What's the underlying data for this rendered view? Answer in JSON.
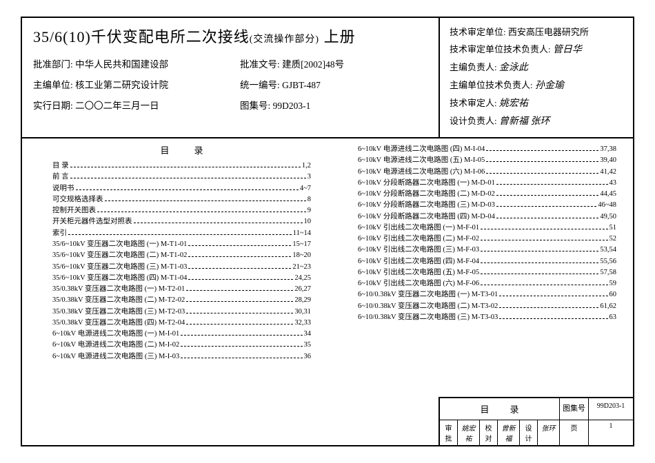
{
  "title_main": "35/6(10)千伏变配电所二次接线",
  "title_paren": "(交流操作部分)",
  "title_suffix": " 上册",
  "header_left": [
    {
      "label": "批准部门:",
      "value": "中华人民共和国建设部"
    },
    {
      "label": "批准文号:",
      "value": "建质[2002]48号"
    },
    {
      "label": "主编单位:",
      "value": "核工业第二研究设计院"
    },
    {
      "label": "统一编号:",
      "value": "GJBT-487"
    },
    {
      "label": "实行日期:",
      "value": "二〇〇二年三月一日"
    },
    {
      "label": "图集号:",
      "value": "99D203-1"
    }
  ],
  "header_right": [
    {
      "label": "技术审定单位:",
      "value": "西安高压电器研究所"
    },
    {
      "label": "技术审定单位技术负责人:",
      "value": "管日华"
    },
    {
      "label": "主编负责人:",
      "value": "金泳此"
    },
    {
      "label": "主编单位技术负责人:",
      "value": "孙金瑜"
    },
    {
      "label": "技术审定人:",
      "value": "姚宏祐"
    },
    {
      "label": "设计负责人:",
      "value": "曾新福  张环"
    }
  ],
  "toc_heading": "目录",
  "toc_left": [
    {
      "name": "目 录",
      "page": "1,2"
    },
    {
      "name": "前 言",
      "page": "3"
    },
    {
      "name": "说明书",
      "page": "4~7"
    },
    {
      "name": "可交规格选择表",
      "page": "8"
    },
    {
      "name": "控制开关图表",
      "page": "9"
    },
    {
      "name": "开关柜元器件选型对照表",
      "page": "10"
    },
    {
      "name": "索引",
      "page": "11~14"
    },
    {
      "name": "35/6~10kV 变压器二次电路图 (一) M-T1-01",
      "page": "15~17"
    },
    {
      "name": "35/6~10kV 变压器二次电路图 (二) M-T1-02",
      "page": "18~20"
    },
    {
      "name": "35/6~10kV 变压器二次电路图 (三) M-T1-03",
      "page": "21~23"
    },
    {
      "name": "35/6~10kV 变压器二次电路图 (四) M-T1-04",
      "page": "24,25"
    },
    {
      "name": "35/0.38kV 变压器二次电路图 (一) M-T2-01",
      "page": "26,27"
    },
    {
      "name": "35/0.38kV 变压器二次电路图 (二) M-T2-02",
      "page": "28,29"
    },
    {
      "name": "35/0.38kV 变压器二次电路图 (三) M-T2-03",
      "page": "30,31"
    },
    {
      "name": "35/0.38kV 变压器二次电路图 (四) M-T2-04",
      "page": "32,33"
    },
    {
      "name": "6~10kV 电源进线二次电路图 (一) M-I-01",
      "page": "34"
    },
    {
      "name": "6~10kV 电源进线二次电路图 (二) M-I-02",
      "page": "35"
    },
    {
      "name": "6~10kV 电源进线二次电路图 (三) M-I-03",
      "page": "36"
    }
  ],
  "toc_right": [
    {
      "name": "6~10kV 电源进线二次电路图 (四) M-I-04",
      "page": "37,38"
    },
    {
      "name": "6~10kV 电源进线二次电路图 (五) M-I-05",
      "page": "39,40"
    },
    {
      "name": "6~10kV 电源进线二次电路图 (六) M-I-06",
      "page": "41,42"
    },
    {
      "name": "6~10kV 分段断路器二次电路图 (一) M-D-01",
      "page": "43"
    },
    {
      "name": "6~10kV 分段断路器二次电路图 (二) M-D-02",
      "page": "44,45"
    },
    {
      "name": "6~10kV 分段断路器二次电路图 (三) M-D-03",
      "page": "46~48"
    },
    {
      "name": "6~10kV 分段断路器二次电路图 (四) M-D-04",
      "page": "49,50"
    },
    {
      "name": "6~10kV 引出线二次电路图 (一) M-F-01",
      "page": "51"
    },
    {
      "name": "6~10kV 引出线二次电路图 (二) M-F-02",
      "page": "52"
    },
    {
      "name": "6~10kV 引出线二次电路图 (三) M-F-03",
      "page": "53,54"
    },
    {
      "name": "6~10kV 引出线二次电路图 (四) M-F-04",
      "page": "55,56"
    },
    {
      "name": "6~10kV 引出线二次电路图 (五) M-F-05",
      "page": "57,58"
    },
    {
      "name": "6~10kV 引出线二次电路图 (六) M-F-06",
      "page": "59"
    },
    {
      "name": "6~10/0.38kV 变压器二次电路图 (一) M-T3-01",
      "page": "60"
    },
    {
      "name": "6~10/0.38kV 变压器二次电路图 (二) M-T3-02",
      "page": "61,62"
    },
    {
      "name": "6~10/0.38kV 变压器二次电路图 (三) M-T3-03",
      "page": "63"
    }
  ],
  "footer": {
    "heading": "目录",
    "set_label": "图集号",
    "set_value": "99D203-1",
    "approve_label": "审批",
    "approve_value": "姚宏祐",
    "check_label": "校对",
    "check_value": "曾新福",
    "design_label": "设计",
    "design_value": "张环",
    "page_label": "页",
    "page_value": "1"
  }
}
